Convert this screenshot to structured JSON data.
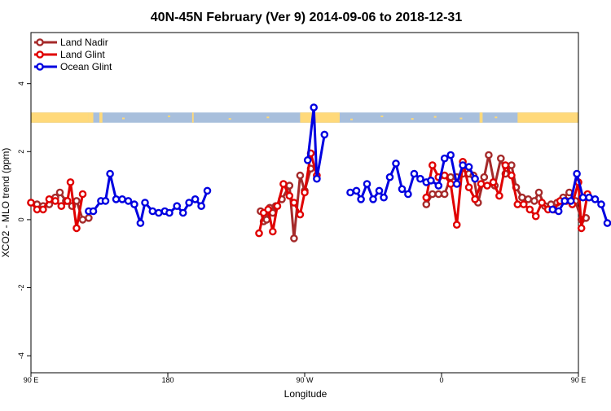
{
  "chart_data": {
    "type": "line",
    "title": "40N-45N February (Ver 9)   2014-09-06 to 2018-12-31",
    "xlabel": "Longitude",
    "ylabel": "XCO2 - MLO trend (ppm)",
    "xlim": [
      90,
      450
    ],
    "ylim": [
      -4.5,
      5.5
    ],
    "xticks": [
      {
        "value": 90,
        "label": "90 E"
      },
      {
        "value": 180,
        "label": "180"
      },
      {
        "value": 270,
        "label": "90 W"
      },
      {
        "value": 360,
        "label": "0"
      },
      {
        "value": 450,
        "label": "90 E"
      },
      {
        "value": 540,
        "label": "180"
      }
    ],
    "yticks": [
      -4,
      -2,
      0,
      2,
      4
    ],
    "land_mask_band": {
      "y_range": [
        2.85,
        3.15
      ],
      "land_color": "#ffd97a",
      "ocean_color": "#a8bfdc"
    },
    "legend_position": "top-left",
    "series": [
      {
        "name": "Land Nadir",
        "color": "#a52a2a",
        "points": [
          [
            90,
            0.5
          ],
          [
            94,
            0.45
          ],
          [
            98,
            0.4
          ],
          [
            102,
            0.45
          ],
          [
            106,
            0.65
          ],
          [
            109,
            0.8
          ],
          [
            113,
            0.55
          ],
          [
            117,
            0.4
          ],
          [
            120,
            0.55
          ],
          [
            124,
            0.0
          ],
          [
            128,
            0.05
          ],
          [
            241,
            0.25
          ],
          [
            243,
            -0.05
          ],
          [
            245,
            0.0
          ],
          [
            247,
            0.35
          ],
          [
            249,
            0.2
          ],
          [
            251,
            0.4
          ],
          [
            255,
            0.6
          ],
          [
            260,
            1.0
          ],
          [
            263,
            -0.55
          ],
          [
            267,
            1.3
          ],
          [
            270,
            0.85
          ],
          [
            274,
            1.5
          ],
          [
            350,
            0.45
          ],
          [
            354,
            0.75
          ],
          [
            358,
            0.75
          ],
          [
            362,
            0.75
          ],
          [
            366,
            1.25
          ],
          [
            370,
            1.25
          ],
          [
            374,
            1.35
          ],
          [
            378,
            1.35
          ],
          [
            381,
            1.3
          ],
          [
            384,
            0.5
          ],
          [
            388,
            1.25
          ],
          [
            391,
            1.9
          ],
          [
            395,
            1.0
          ],
          [
            399,
            1.8
          ],
          [
            402,
            1.35
          ],
          [
            406,
            1.6
          ],
          [
            409,
            0.95
          ],
          [
            413,
            0.65
          ],
          [
            417,
            0.6
          ],
          [
            421,
            0.55
          ],
          [
            424,
            0.8
          ],
          [
            428,
            0.4
          ],
          [
            432,
            0.45
          ],
          [
            436,
            0.5
          ],
          [
            440,
            0.65
          ],
          [
            444,
            0.8
          ],
          [
            448,
            0.55
          ],
          [
            452,
            0.0
          ],
          [
            455,
            0.05
          ]
        ]
      },
      {
        "name": "Land Glint",
        "color": "#e00000",
        "points": [
          [
            90,
            0.5
          ],
          [
            94,
            0.3
          ],
          [
            98,
            0.3
          ],
          [
            102,
            0.6
          ],
          [
            106,
            0.55
          ],
          [
            110,
            0.4
          ],
          [
            114,
            0.55
          ],
          [
            116,
            1.1
          ],
          [
            120,
            -0.25
          ],
          [
            124,
            0.75
          ],
          [
            240,
            -0.4
          ],
          [
            243,
            0.2
          ],
          [
            246,
            0.3
          ],
          [
            249,
            -0.35
          ],
          [
            252,
            0.4
          ],
          [
            256,
            1.05
          ],
          [
            260,
            0.7
          ],
          [
            263,
            0.5
          ],
          [
            267,
            0.15
          ],
          [
            270,
            0.8
          ],
          [
            274,
            1.95
          ],
          [
            278,
            1.3
          ],
          [
            350,
            0.65
          ],
          [
            354,
            1.6
          ],
          [
            358,
            1.25
          ],
          [
            362,
            1.3
          ],
          [
            366,
            1.05
          ],
          [
            370,
            -0.15
          ],
          [
            374,
            1.7
          ],
          [
            378,
            0.95
          ],
          [
            382,
            0.6
          ],
          [
            386,
            1.05
          ],
          [
            390,
            1.0
          ],
          [
            394,
            1.1
          ],
          [
            398,
            0.7
          ],
          [
            402,
            1.6
          ],
          [
            406,
            1.3
          ],
          [
            410,
            0.45
          ],
          [
            414,
            0.45
          ],
          [
            418,
            0.3
          ],
          [
            422,
            0.1
          ],
          [
            426,
            0.5
          ],
          [
            430,
            0.3
          ],
          [
            434,
            0.3
          ],
          [
            438,
            0.55
          ],
          [
            442,
            0.55
          ],
          [
            446,
            0.45
          ],
          [
            450,
            1.1
          ],
          [
            452,
            -0.25
          ],
          [
            456,
            0.75
          ]
        ]
      },
      {
        "name": "Ocean Glint",
        "color": "#0000e0",
        "points": [
          [
            128,
            0.25
          ],
          [
            131,
            0.25
          ],
          [
            136,
            0.55
          ],
          [
            139,
            0.55
          ],
          [
            142,
            1.35
          ],
          [
            146,
            0.6
          ],
          [
            150,
            0.6
          ],
          [
            154,
            0.55
          ],
          [
            158,
            0.45
          ],
          [
            162,
            -0.1
          ],
          [
            165,
            0.5
          ],
          [
            170,
            0.25
          ],
          [
            174,
            0.2
          ],
          [
            178,
            0.25
          ],
          [
            181,
            0.2
          ],
          [
            186,
            0.4
          ],
          [
            190,
            0.2
          ],
          [
            194,
            0.5
          ],
          [
            198,
            0.6
          ],
          [
            202,
            0.4
          ],
          [
            206,
            0.85
          ],
          [
            272,
            1.75
          ],
          [
            276,
            3.3
          ],
          [
            278,
            1.2
          ],
          [
            283,
            2.5
          ],
          [
            300,
            0.8
          ],
          [
            304,
            0.85
          ],
          [
            307,
            0.6
          ],
          [
            311,
            1.05
          ],
          [
            315,
            0.6
          ],
          [
            319,
            0.85
          ],
          [
            322,
            0.65
          ],
          [
            326,
            1.25
          ],
          [
            330,
            1.65
          ],
          [
            334,
            0.9
          ],
          [
            338,
            0.75
          ],
          [
            342,
            1.35
          ],
          [
            346,
            1.2
          ],
          [
            350,
            1.1
          ],
          [
            353,
            1.15
          ],
          [
            358,
            1.0
          ],
          [
            362,
            1.8
          ],
          [
            366,
            1.9
          ],
          [
            370,
            1.05
          ],
          [
            374,
            1.6
          ],
          [
            378,
            1.55
          ],
          [
            382,
            1.2
          ],
          [
            433,
            0.3
          ],
          [
            437,
            0.25
          ],
          [
            441,
            0.55
          ],
          [
            445,
            0.55
          ],
          [
            449,
            1.35
          ],
          [
            453,
            0.65
          ],
          [
            457,
            0.65
          ],
          [
            461,
            0.6
          ],
          [
            465,
            0.45
          ],
          [
            469,
            -0.1
          ]
        ]
      }
    ]
  }
}
